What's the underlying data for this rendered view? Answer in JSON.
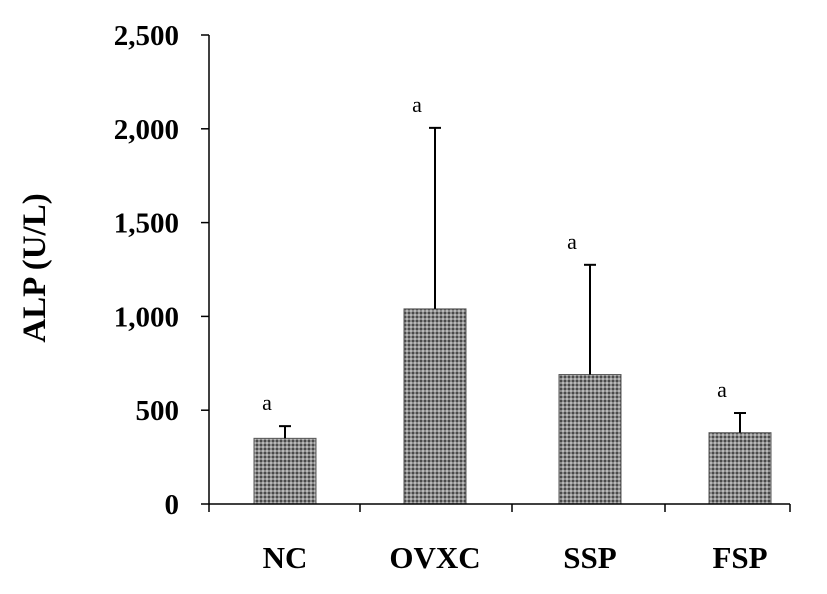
{
  "chart_data": {
    "type": "bar",
    "title": "",
    "xlabel": "",
    "ylabel": "ALP (U/L)",
    "categories": [
      "NC",
      "OVXC",
      "SSP",
      "FSP"
    ],
    "values": [
      350,
      1040,
      690,
      380
    ],
    "error_upper": [
      415,
      2005,
      1275,
      485
    ],
    "significance": [
      "a",
      "a",
      "a",
      "a"
    ],
    "ylim": [
      0,
      2500
    ],
    "yticks": [
      0,
      500,
      1000,
      1500,
      2000,
      2500
    ],
    "ytick_labels": [
      "0",
      "500",
      "1,000",
      "1,500",
      "2,000",
      "2,500"
    ],
    "grid": false,
    "legend": "none",
    "colors": {
      "bar_fill": "#8a8a8a",
      "bar_pattern_dark": "#4a4a4a",
      "bar_pattern_light": "#b8b8b8",
      "axis": "#000000"
    }
  }
}
